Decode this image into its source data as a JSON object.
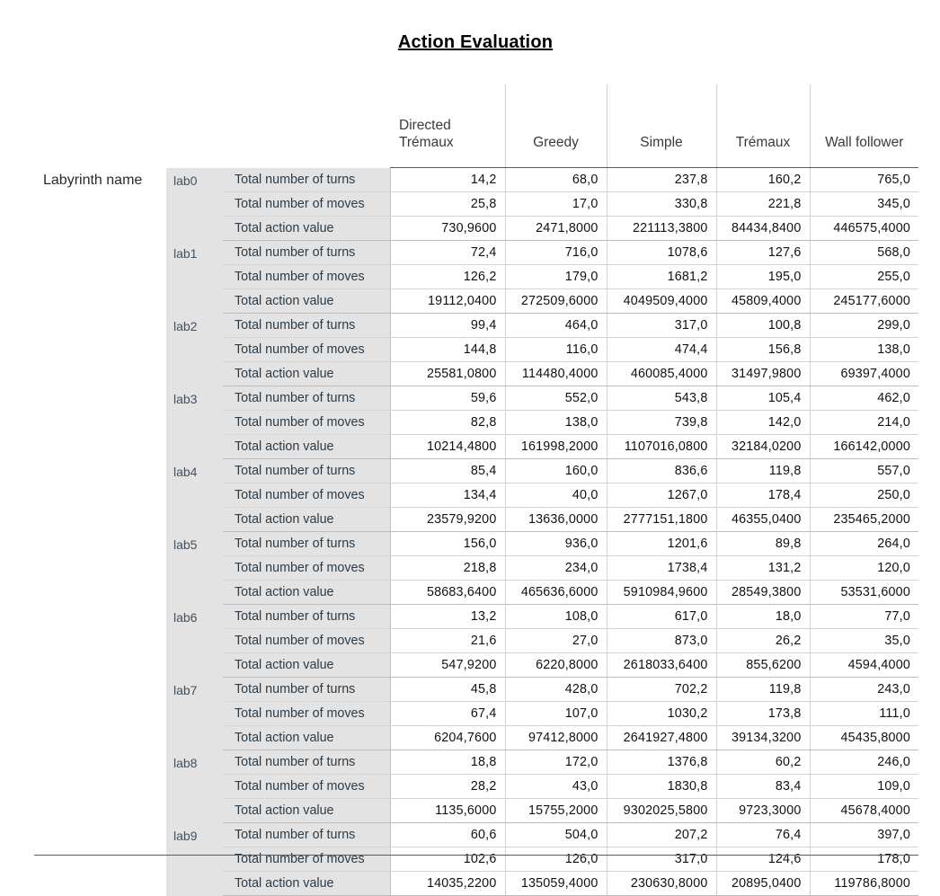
{
  "title": "Action Evaluation",
  "row_dimension_label": "Labyrinth name",
  "columns": [
    "Directed Trémaux",
    "Greedy",
    "Simple",
    "Trémaux",
    "Wall follower"
  ],
  "measures": [
    "Total number of turns",
    "Total number of moves",
    "Total action value"
  ],
  "groups": [
    {
      "lab": "lab0",
      "rows": [
        [
          "14,2",
          "68,0",
          "237,8",
          "160,2",
          "765,0"
        ],
        [
          "25,8",
          "17,0",
          "330,8",
          "221,8",
          "345,0"
        ],
        [
          "730,9600",
          "2471,8000",
          "221113,3800",
          "84434,8400",
          "446575,4000"
        ]
      ]
    },
    {
      "lab": "lab1",
      "rows": [
        [
          "72,4",
          "716,0",
          "1078,6",
          "127,6",
          "568,0"
        ],
        [
          "126,2",
          "179,0",
          "1681,2",
          "195,0",
          "255,0"
        ],
        [
          "19112,0400",
          "272509,6000",
          "4049509,4000",
          "45809,4000",
          "245177,6000"
        ]
      ]
    },
    {
      "lab": "lab2",
      "rows": [
        [
          "99,4",
          "464,0",
          "317,0",
          "100,8",
          "299,0"
        ],
        [
          "144,8",
          "116,0",
          "474,4",
          "156,8",
          "138,0"
        ],
        [
          "25581,0800",
          "114480,4000",
          "460085,4000",
          "31497,9800",
          "69397,4000"
        ]
      ]
    },
    {
      "lab": "lab3",
      "rows": [
        [
          "59,6",
          "552,0",
          "543,8",
          "105,4",
          "462,0"
        ],
        [
          "82,8",
          "138,0",
          "739,8",
          "142,0",
          "214,0"
        ],
        [
          "10214,4800",
          "161998,2000",
          "1107016,0800",
          "32184,0200",
          "166142,0000"
        ]
      ]
    },
    {
      "lab": "lab4",
      "rows": [
        [
          "85,4",
          "160,0",
          "836,6",
          "119,8",
          "557,0"
        ],
        [
          "134,4",
          "40,0",
          "1267,0",
          "178,4",
          "250,0"
        ],
        [
          "23579,9200",
          "13636,0000",
          "2777151,1800",
          "46355,0400",
          "235465,2000"
        ]
      ]
    },
    {
      "lab": "lab5",
      "rows": [
        [
          "156,0",
          "936,0",
          "1201,6",
          "89,8",
          "264,0"
        ],
        [
          "218,8",
          "234,0",
          "1738,4",
          "131,2",
          "120,0"
        ],
        [
          "58683,6400",
          "465636,6000",
          "5910984,9600",
          "28549,3800",
          "53531,6000"
        ]
      ]
    },
    {
      "lab": "lab6",
      "rows": [
        [
          "13,2",
          "108,0",
          "617,0",
          "18,0",
          "77,0"
        ],
        [
          "21,6",
          "27,0",
          "873,0",
          "26,2",
          "35,0"
        ],
        [
          "547,9200",
          "6220,8000",
          "2618033,6400",
          "855,6200",
          "4594,4000"
        ]
      ]
    },
    {
      "lab": "lab7",
      "rows": [
        [
          "45,8",
          "428,0",
          "702,2",
          "119,8",
          "243,0"
        ],
        [
          "67,4",
          "107,0",
          "1030,2",
          "173,8",
          "111,0"
        ],
        [
          "6204,7600",
          "97412,8000",
          "2641927,4800",
          "39134,3200",
          "45435,8000"
        ]
      ]
    },
    {
      "lab": "lab8",
      "rows": [
        [
          "18,8",
          "172,0",
          "1376,8",
          "60,2",
          "246,0"
        ],
        [
          "28,2",
          "43,0",
          "1830,8",
          "83,4",
          "109,0"
        ],
        [
          "1135,6000",
          "15755,2000",
          "9302025,5800",
          "9723,3000",
          "45678,4000"
        ]
      ]
    },
    {
      "lab": "lab9",
      "rows": [
        [
          "60,6",
          "504,0",
          "207,2",
          "76,4",
          "397,0"
        ],
        [
          "102,6",
          "126,0",
          "317,0",
          "124,6",
          "178,0"
        ],
        [
          "14035,2200",
          "135059,4000",
          "230630,8000",
          "20895,0400",
          "119786,8000"
        ]
      ]
    }
  ]
}
